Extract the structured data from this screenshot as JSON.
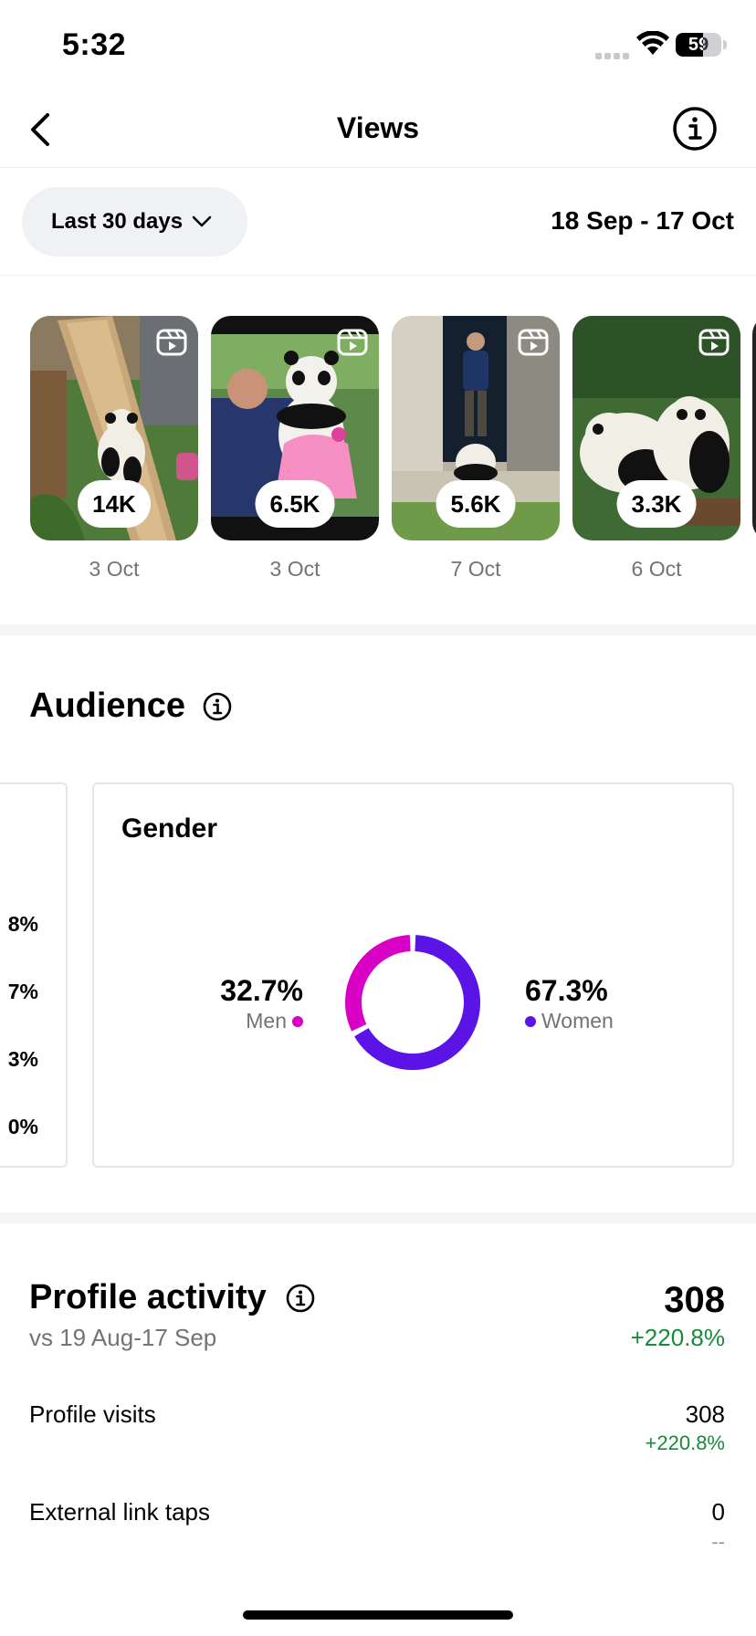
{
  "status_bar": {
    "time": "5:32",
    "battery": "59",
    "battery_level": 0.59
  },
  "nav": {
    "title": "Views",
    "back_icon": "chevron-left-icon",
    "info_icon": "info-icon"
  },
  "filter": {
    "range_label": "Last 30 days",
    "date_range": "18 Sep - 17 Oct"
  },
  "reels": [
    {
      "views": "14K",
      "date": "3 Oct"
    },
    {
      "views": "6.5K",
      "date": "3 Oct"
    },
    {
      "views": "5.6K",
      "date": "7 Oct"
    },
    {
      "views": "3.3K",
      "date": "6 Oct"
    }
  ],
  "audience": {
    "title": "Audience",
    "prev_card_values": [
      "8%",
      "7%",
      "3%",
      "0%"
    ],
    "gender": {
      "title": "Gender",
      "men_pct": "32.7%",
      "men_label": "Men",
      "men_value": 32.7,
      "women_pct": "67.3%",
      "women_label": "Women",
      "women_value": 67.3,
      "men_color": "#d900c5",
      "women_color": "#5b14e6"
    }
  },
  "profile_activity": {
    "title": "Profile activity",
    "comparison": "vs 19 Aug-17 Sep",
    "total": "308",
    "total_change": "+220.8%",
    "rows": [
      {
        "label": "Profile visits",
        "value": "308",
        "change": "+220.8%"
      },
      {
        "label": "External link taps",
        "value": "0",
        "change": "--"
      }
    ]
  },
  "colors": {
    "positive": "#188a3a",
    "muted": "#737373"
  }
}
